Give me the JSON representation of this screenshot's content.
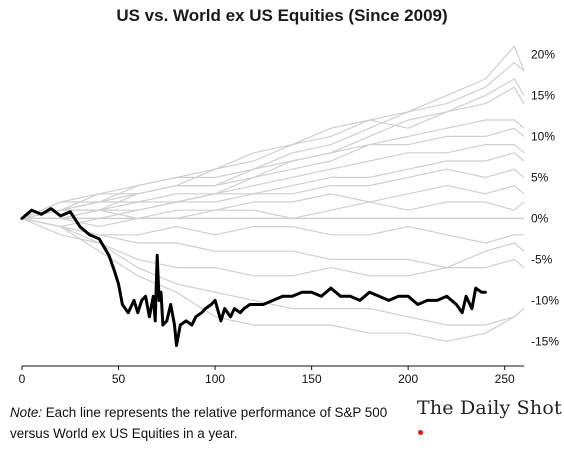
{
  "chart_data": {
    "type": "line",
    "title": "US vs. World ex US Equities (Since 2009)",
    "xlabel": "",
    "ylabel": "",
    "xlim": [
      0,
      260
    ],
    "ylim": [
      -18,
      22
    ],
    "x_ticks": [
      0,
      50,
      100,
      150,
      200,
      250
    ],
    "y_ticks": [
      20,
      15,
      10,
      5,
      0,
      -5,
      -10,
      -15
    ],
    "y_tick_labels": [
      "20%",
      "15%",
      "10%",
      "5%",
      "0%",
      "-5%",
      "-10%",
      "-15%"
    ],
    "y_axis_side": "right",
    "grid": false,
    "zero_line": true,
    "highlight_series": {
      "color": "#000000",
      "x": [
        0,
        5,
        10,
        15,
        20,
        25,
        30,
        35,
        40,
        45,
        48,
        50,
        52,
        55,
        58,
        60,
        62,
        64,
        66,
        68,
        69,
        70,
        71,
        72,
        73,
        75,
        77,
        79,
        80,
        82,
        85,
        88,
        90,
        93,
        95,
        98,
        100,
        103,
        105,
        108,
        110,
        113,
        115,
        118,
        120,
        125,
        130,
        135,
        140,
        145,
        150,
        155,
        160,
        165,
        170,
        175,
        180,
        185,
        190,
        195,
        200,
        205,
        210,
        215,
        220,
        225,
        228,
        230,
        233,
        235,
        238,
        240
      ],
      "values": [
        0.0,
        1.0,
        0.5,
        1.2,
        0.3,
        0.8,
        -1.0,
        -2.0,
        -2.5,
        -4.5,
        -6.5,
        -8.0,
        -10.5,
        -11.5,
        -10.0,
        -11.5,
        -10.0,
        -9.5,
        -12.0,
        -9.5,
        -12.5,
        -4.5,
        -10.0,
        -9.0,
        -13.0,
        -12.5,
        -10.5,
        -13.0,
        -15.5,
        -13.0,
        -12.5,
        -13.0,
        -12.0,
        -11.5,
        -11.0,
        -10.5,
        -10.0,
        -12.5,
        -11.0,
        -12.0,
        -11.0,
        -11.5,
        -11.0,
        -10.5,
        -10.5,
        -10.5,
        -10.0,
        -9.5,
        -9.5,
        -9.0,
        -9.0,
        -9.5,
        -8.5,
        -9.5,
        -9.5,
        -10.0,
        -9.0,
        -9.5,
        -10.0,
        -9.5,
        -9.5,
        -10.5,
        -10.0,
        -10.0,
        -9.5,
        -10.5,
        -11.5,
        -9.5,
        -11.0,
        -8.5,
        -9.0,
        -9.0
      ]
    },
    "background_series_color": "#cfcfcf",
    "background_series": [
      {
        "x": [
          0,
          20,
          40,
          60,
          80,
          100,
          120,
          140,
          160,
          180,
          200,
          220,
          240,
          255,
          260
        ],
        "values": [
          0,
          2,
          3,
          4,
          5,
          6,
          8,
          9,
          10,
          12,
          13,
          15,
          17,
          21,
          18
        ]
      },
      {
        "x": [
          0,
          20,
          40,
          60,
          80,
          100,
          120,
          140,
          160,
          180,
          200,
          220,
          240,
          255,
          260
        ],
        "values": [
          0,
          1,
          2,
          4,
          5,
          5,
          6,
          8,
          9,
          11,
          13,
          14,
          16,
          19,
          18
        ]
      },
      {
        "x": [
          0,
          20,
          40,
          60,
          80,
          100,
          120,
          140,
          160,
          180,
          200,
          220,
          240,
          255,
          260
        ],
        "values": [
          0,
          1,
          3,
          3,
          4,
          6,
          7,
          9,
          11,
          12,
          11,
          13,
          14,
          16,
          14
        ]
      },
      {
        "x": [
          0,
          20,
          40,
          60,
          80,
          100,
          120,
          140,
          160,
          180,
          200,
          220,
          240,
          255,
          260
        ],
        "values": [
          0,
          2,
          2,
          3,
          4,
          4,
          6,
          7,
          8,
          9,
          10,
          11,
          12,
          12,
          11
        ]
      },
      {
        "x": [
          0,
          20,
          40,
          60,
          80,
          100,
          120,
          140,
          160,
          180,
          200,
          220,
          240,
          255,
          260
        ],
        "values": [
          0,
          1,
          1,
          2,
          3,
          3,
          5,
          6,
          7,
          9,
          9,
          10,
          10,
          11,
          10
        ]
      },
      {
        "x": [
          0,
          20,
          40,
          60,
          80,
          100,
          120,
          140,
          160,
          180,
          200,
          220,
          240,
          255,
          260
        ],
        "values": [
          0,
          0,
          1,
          1,
          2,
          3,
          4,
          5,
          6,
          7,
          8,
          8,
          9,
          9,
          8
        ]
      },
      {
        "x": [
          0,
          20,
          40,
          60,
          80,
          100,
          120,
          140,
          160,
          180,
          200,
          220,
          240,
          255,
          260
        ],
        "values": [
          0,
          1,
          2,
          2,
          2,
          3,
          3,
          4,
          5,
          5,
          6,
          7,
          7,
          8,
          7
        ]
      },
      {
        "x": [
          0,
          20,
          40,
          60,
          80,
          100,
          120,
          140,
          160,
          180,
          200,
          220,
          240,
          255,
          260
        ],
        "values": [
          0,
          -1,
          0,
          1,
          2,
          2,
          3,
          3,
          4,
          4,
          5,
          6,
          5,
          6,
          5
        ]
      },
      {
        "x": [
          0,
          20,
          40,
          60,
          80,
          100,
          120,
          140,
          160,
          180,
          200,
          220,
          240,
          255,
          260
        ],
        "values": [
          0,
          0,
          -1,
          0,
          1,
          1,
          2,
          2,
          3,
          2,
          3,
          4,
          3,
          4,
          3
        ]
      },
      {
        "x": [
          0,
          20,
          40,
          60,
          80,
          100,
          120,
          140,
          160,
          180,
          200,
          220,
          240,
          255,
          260
        ],
        "values": [
          0,
          1,
          1,
          0,
          0,
          1,
          1,
          0,
          1,
          2,
          1,
          2,
          2,
          1,
          2
        ]
      },
      {
        "x": [
          0,
          20,
          40,
          60,
          80,
          100,
          120,
          140,
          160,
          180,
          200,
          220,
          240,
          255,
          260
        ],
        "values": [
          0,
          -1,
          -2,
          -2,
          -1,
          -2,
          -1,
          -1,
          -2,
          -2,
          -1,
          -2,
          -3,
          -2,
          -2
        ]
      },
      {
        "x": [
          0,
          20,
          40,
          60,
          80,
          100,
          120,
          140,
          160,
          180,
          200,
          220,
          240,
          255,
          260
        ],
        "values": [
          0,
          -1,
          -2,
          -3,
          -3,
          -4,
          -4,
          -4,
          -5,
          -5,
          -5,
          -6,
          -4,
          -3,
          -4
        ]
      },
      {
        "x": [
          0,
          20,
          40,
          60,
          80,
          100,
          120,
          140,
          160,
          180,
          200,
          220,
          240,
          255,
          260
        ],
        "values": [
          0,
          -1,
          -3,
          -5,
          -6,
          -6,
          -7,
          -7,
          -6,
          -7,
          -7,
          -6,
          -6,
          -5,
          -6
        ]
      },
      {
        "x": [
          0,
          20,
          40,
          60,
          80,
          100,
          120,
          140,
          160,
          180,
          200,
          220,
          240,
          255,
          260
        ],
        "values": [
          0,
          -2,
          -3,
          -6,
          -8,
          -9,
          -10,
          -11,
          -11,
          -11,
          -12,
          -13,
          -13,
          -12,
          -11
        ]
      },
      {
        "x": [
          0,
          20,
          40,
          60,
          80,
          100,
          120,
          140,
          160,
          180,
          200,
          220,
          240,
          255,
          260
        ],
        "values": [
          0,
          -1,
          -4,
          -7,
          -9,
          -12,
          -13,
          -13,
          -13,
          -14,
          -14,
          -15,
          -14,
          -12,
          -11
        ]
      },
      {
        "x": [
          0,
          20,
          40,
          60,
          80,
          100,
          120,
          140,
          160,
          180,
          200,
          220,
          240,
          255,
          260
        ],
        "values": [
          0,
          0,
          1,
          3,
          4,
          4,
          5,
          7,
          8,
          10,
          12,
          13,
          15,
          17,
          15
        ]
      }
    ]
  },
  "note": {
    "label": "Note:",
    "text": " Each line represents the relative performance of S&P 500 versus World ex US Equities in a year."
  },
  "brand": {
    "text": "The Daily Shot",
    "dot_color": "#d61f26"
  }
}
